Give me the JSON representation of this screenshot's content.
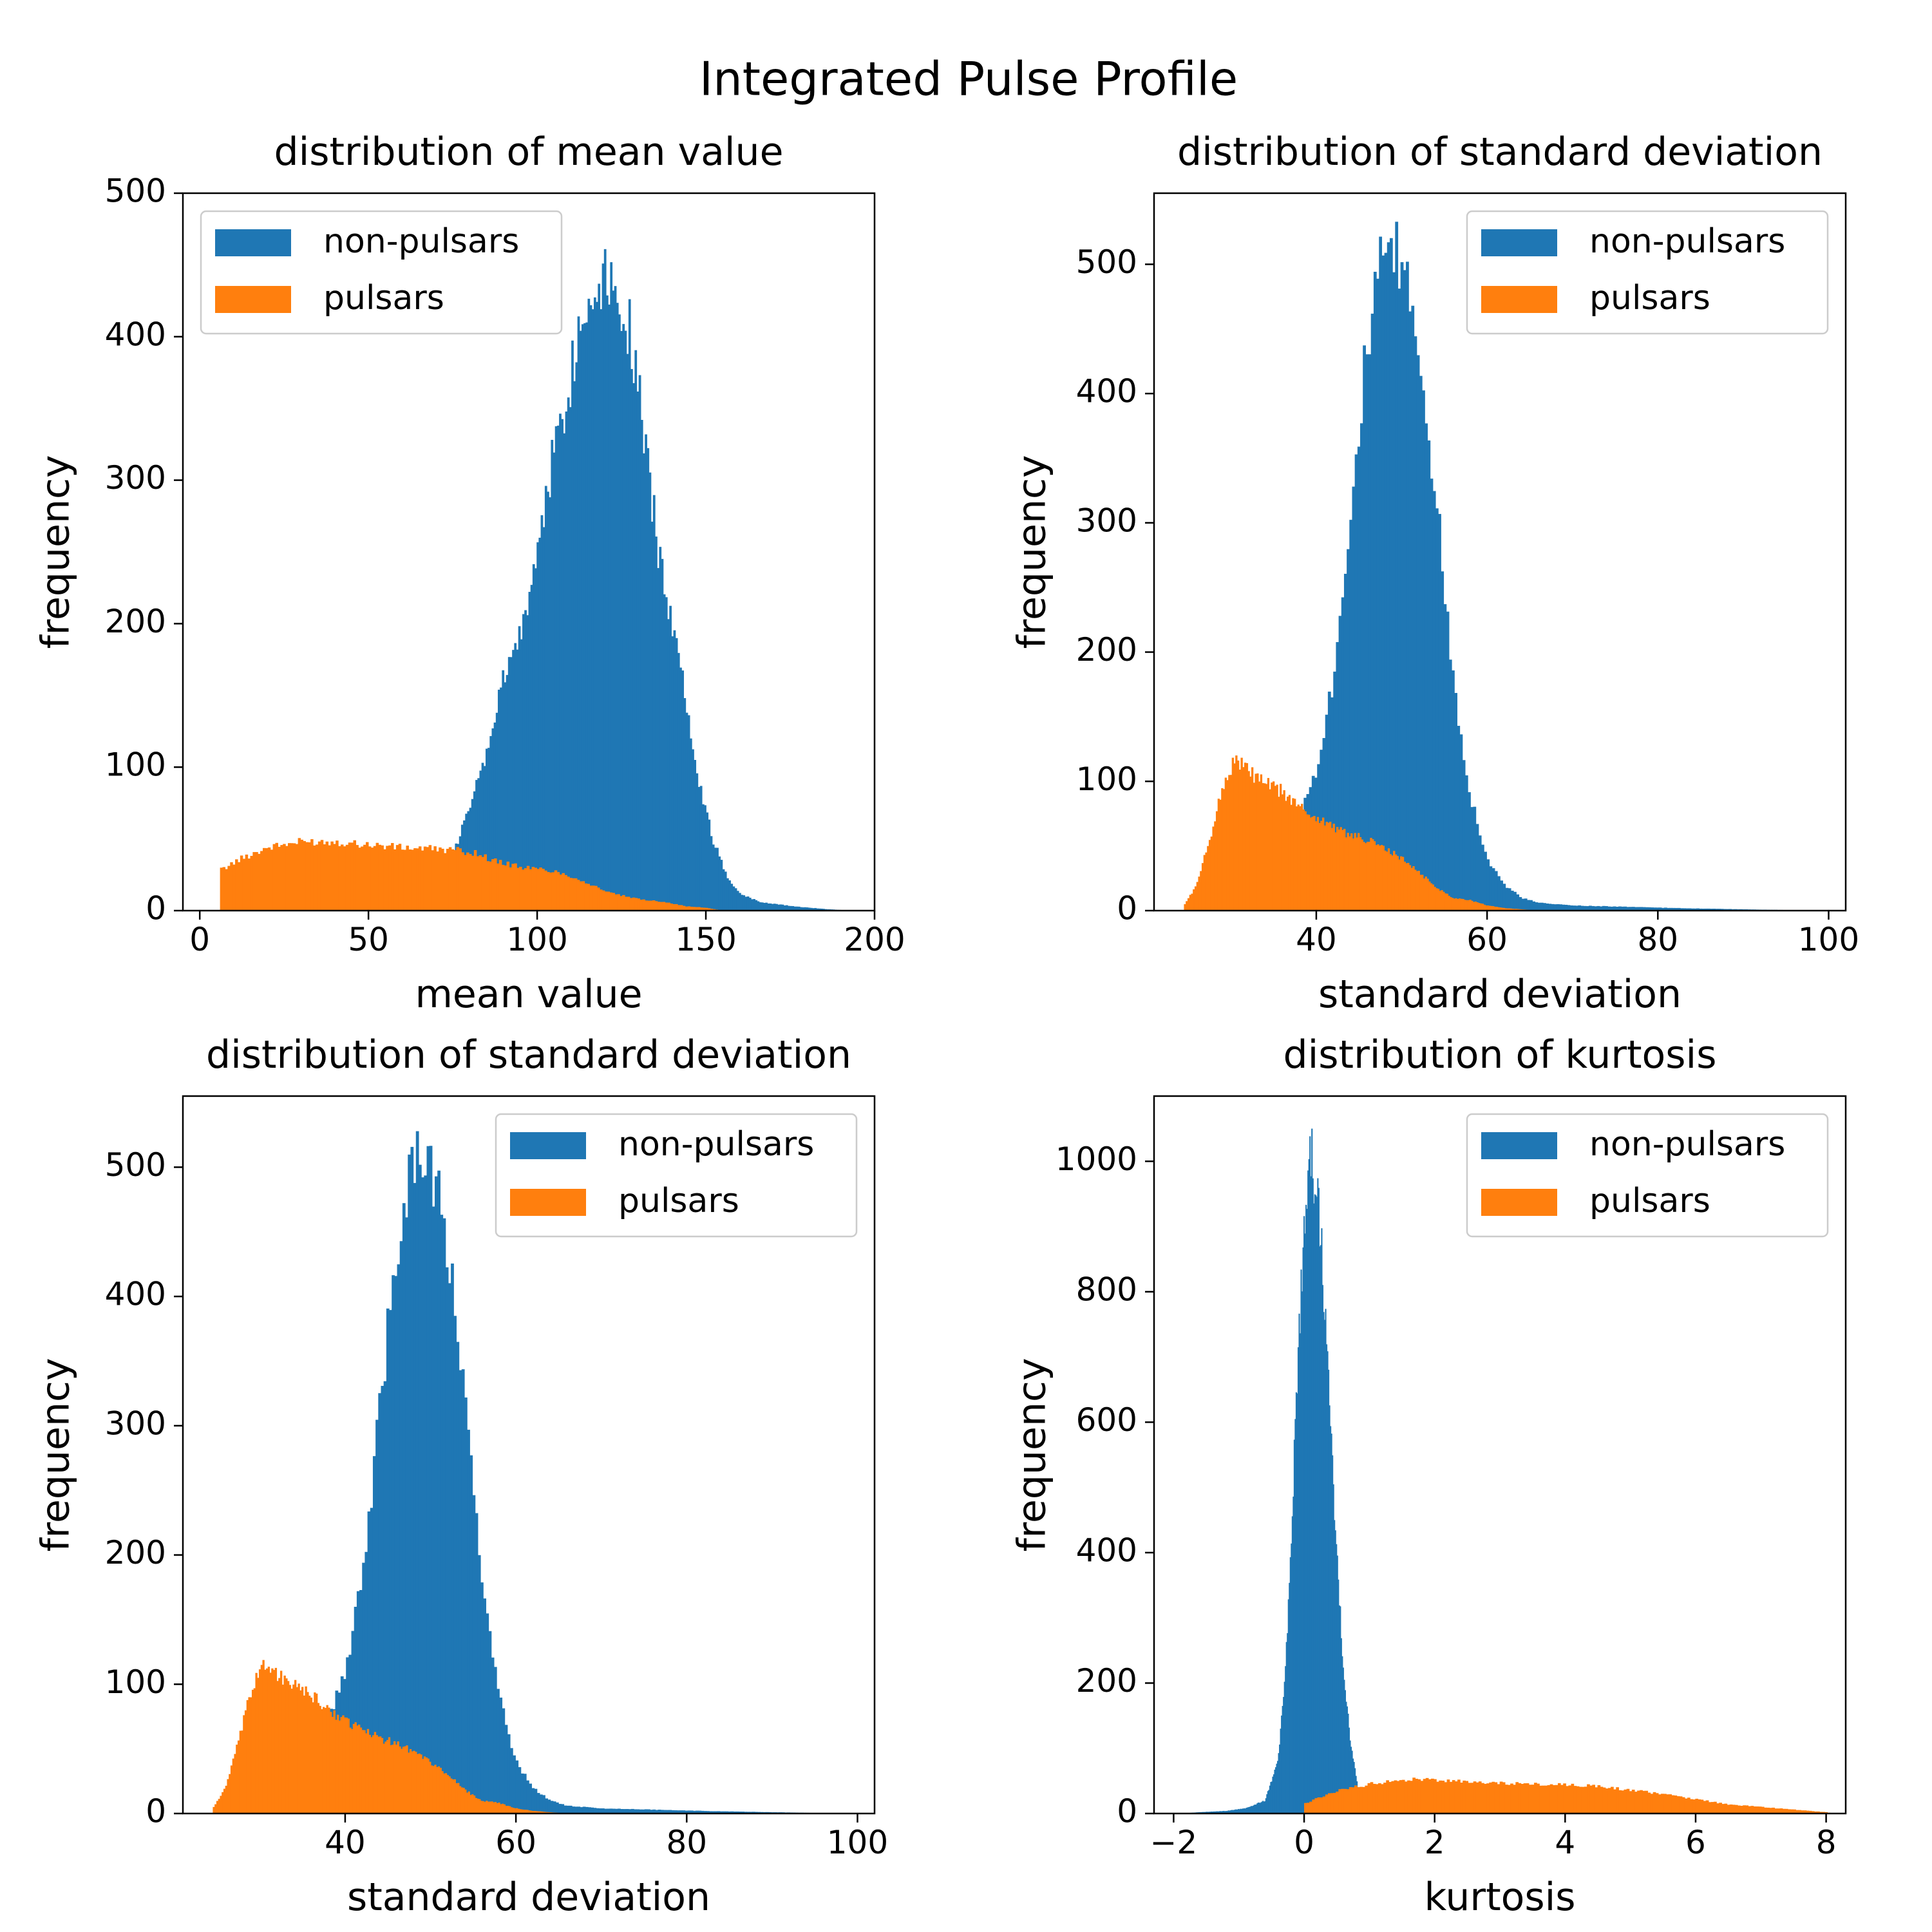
{
  "figure_title": "Integrated Pulse Profile",
  "colors": {
    "non_pulsars": "#1f77b4",
    "pulsars": "#ff7f0e"
  },
  "chart_data": [
    {
      "type": "bar",
      "title": "distribution of mean value",
      "xlabel": "mean value",
      "ylabel": "frequency",
      "xlim": [
        -5,
        200
      ],
      "ylim": [
        0,
        500
      ],
      "xticks": [
        0,
        50,
        100,
        150,
        200
      ],
      "yticks": [
        0,
        100,
        200,
        300,
        400,
        500
      ],
      "legend": {
        "position": "upper-left"
      },
      "series": [
        {
          "name": "non-pulsars",
          "color": "#1f77b4",
          "peaks": [
            [
              72,
              0
            ],
            [
              76,
              45
            ],
            [
              84,
              100
            ],
            [
              90,
              160
            ],
            [
              96,
              200
            ],
            [
              100,
              250
            ],
            [
              104,
              310
            ],
            [
              108,
              350
            ],
            [
              112,
              400
            ],
            [
              116,
              430
            ],
            [
              120,
              450
            ],
            [
              124,
              430
            ],
            [
              128,
              400
            ],
            [
              132,
              320
            ],
            [
              136,
              250
            ],
            [
              140,
              200
            ],
            [
              144,
              150
            ],
            [
              148,
              90
            ],
            [
              152,
              50
            ],
            [
              156,
              25
            ],
            [
              160,
              12
            ],
            [
              166,
              6
            ],
            [
              176,
              3
            ],
            [
              186,
              1
            ],
            [
              193,
              0
            ]
          ]
        },
        {
          "name": "pulsars",
          "color": "#ff7f0e",
          "peaks": [
            [
              6,
              28
            ],
            [
              12,
              36
            ],
            [
              20,
              44
            ],
            [
              30,
              48
            ],
            [
              40,
              48
            ],
            [
              50,
              46
            ],
            [
              60,
              44
            ],
            [
              70,
              43
            ],
            [
              76,
              42
            ],
            [
              82,
              40
            ],
            [
              88,
              34
            ],
            [
              96,
              30
            ],
            [
              104,
              28
            ],
            [
              110,
              24
            ],
            [
              116,
              18
            ],
            [
              122,
              12
            ],
            [
              130,
              8
            ],
            [
              138,
              6
            ],
            [
              144,
              3
            ],
            [
              150,
              2
            ],
            [
              155,
              0
            ]
          ]
        }
      ]
    },
    {
      "type": "bar",
      "title": "distribution of standard deviation",
      "xlabel": "standard deviation",
      "ylabel": "frequency",
      "xlim": [
        21,
        102
      ],
      "ylim": [
        0,
        555
      ],
      "xticks": [
        40,
        60,
        80,
        100
      ],
      "yticks": [
        0,
        100,
        200,
        300,
        400,
        500
      ],
      "legend": {
        "position": "upper-right"
      },
      "series": [
        {
          "name": "non-pulsars",
          "color": "#1f77b4",
          "peaks": [
            [
              36,
              0
            ],
            [
              38,
              70
            ],
            [
              40,
              110
            ],
            [
              42,
              180
            ],
            [
              44,
              310
            ],
            [
              46,
              440
            ],
            [
              48,
              510
            ],
            [
              50,
              500
            ],
            [
              52,
              440
            ],
            [
              54,
              320
            ],
            [
              56,
              180
            ],
            [
              58,
              90
            ],
            [
              60,
              40
            ],
            [
              62,
              20
            ],
            [
              64,
              10
            ],
            [
              66,
              6
            ],
            [
              70,
              4
            ],
            [
              76,
              3
            ],
            [
              82,
              2
            ],
            [
              90,
              1
            ],
            [
              99,
              0
            ]
          ]
        },
        {
          "name": "pulsars",
          "color": "#ff7f0e",
          "peaks": [
            [
              24.5,
              4
            ],
            [
              26,
              20
            ],
            [
              27.5,
              55
            ],
            [
              29,
              95
            ],
            [
              30.5,
              118
            ],
            [
              32,
              108
            ],
            [
              34,
              98
            ],
            [
              36,
              92
            ],
            [
              38,
              80
            ],
            [
              40,
              72
            ],
            [
              42,
              65
            ],
            [
              44,
              58
            ],
            [
              46,
              55
            ],
            [
              48,
              48
            ],
            [
              50,
              40
            ],
            [
              52,
              30
            ],
            [
              54,
              18
            ],
            [
              56,
              10
            ],
            [
              58,
              8
            ],
            [
              60,
              4
            ],
            [
              62,
              2
            ],
            [
              64,
              1
            ],
            [
              66,
              0
            ]
          ]
        }
      ]
    },
    {
      "type": "bar",
      "title": "distribution of standard deviation",
      "xlabel": "standard deviation",
      "ylabel": "frequency",
      "xlim": [
        21,
        102
      ],
      "ylim": [
        0,
        555
      ],
      "xticks": [
        40,
        60,
        80,
        100
      ],
      "yticks": [
        0,
        100,
        200,
        300,
        400,
        500
      ],
      "legend": {
        "position": "upper-right"
      },
      "series": [
        {
          "name": "non-pulsars",
          "color": "#1f77b4",
          "peaks": [
            [
              36,
              0
            ],
            [
              38,
              70
            ],
            [
              40,
              110
            ],
            [
              42,
              180
            ],
            [
              44,
              310
            ],
            [
              46,
              440
            ],
            [
              48,
              510
            ],
            [
              50,
              500
            ],
            [
              52,
              440
            ],
            [
              54,
              320
            ],
            [
              56,
              180
            ],
            [
              58,
              90
            ],
            [
              60,
              40
            ],
            [
              62,
              20
            ],
            [
              64,
              10
            ],
            [
              66,
              6
            ],
            [
              70,
              4
            ],
            [
              76,
              3
            ],
            [
              82,
              2
            ],
            [
              90,
              1
            ],
            [
              99,
              0
            ]
          ]
        },
        {
          "name": "pulsars",
          "color": "#ff7f0e",
          "peaks": [
            [
              24.5,
              4
            ],
            [
              26,
              20
            ],
            [
              27.5,
              55
            ],
            [
              29,
              95
            ],
            [
              30.5,
              118
            ],
            [
              32,
              108
            ],
            [
              34,
              98
            ],
            [
              36,
              92
            ],
            [
              38,
              80
            ],
            [
              40,
              72
            ],
            [
              42,
              65
            ],
            [
              44,
              58
            ],
            [
              46,
              55
            ],
            [
              48,
              48
            ],
            [
              50,
              40
            ],
            [
              52,
              30
            ],
            [
              54,
              18
            ],
            [
              56,
              10
            ],
            [
              58,
              8
            ],
            [
              60,
              4
            ],
            [
              62,
              2
            ],
            [
              64,
              1
            ],
            [
              66,
              0
            ]
          ]
        }
      ]
    },
    {
      "type": "bar",
      "title": "distribution of kurtosis",
      "xlabel": "kurtosis",
      "ylabel": "frequency",
      "xlim": [
        -2.3,
        8.3
      ],
      "ylim": [
        0,
        1100
      ],
      "xticks": [
        -2,
        0,
        2,
        4,
        6,
        8
      ],
      "xtick_labels": [
        "−2",
        "0",
        "2",
        "4",
        "6",
        "8"
      ],
      "yticks": [
        0,
        200,
        400,
        600,
        800,
        1000
      ],
      "legend": {
        "position": "upper-right"
      },
      "series": [
        {
          "name": "non-pulsars",
          "color": "#1f77b4",
          "peaks": [
            [
              -1.9,
              0
            ],
            [
              -1.6,
              2
            ],
            [
              -1.2,
              4
            ],
            [
              -0.9,
              8
            ],
            [
              -0.6,
              20
            ],
            [
              -0.4,
              80
            ],
            [
              -0.3,
              200
            ],
            [
              -0.2,
              400
            ],
            [
              -0.1,
              700
            ],
            [
              0.0,
              920
            ],
            [
              0.1,
              1000
            ],
            [
              0.2,
              960
            ],
            [
              0.3,
              800
            ],
            [
              0.4,
              600
            ],
            [
              0.5,
              400
            ],
            [
              0.6,
              220
            ],
            [
              0.7,
              120
            ],
            [
              0.8,
              50
            ],
            [
              0.9,
              15
            ],
            [
              1.0,
              5
            ],
            [
              1.1,
              0
            ]
          ]
        },
        {
          "name": "pulsars",
          "color": "#ff7f0e",
          "peaks": [
            [
              0.0,
              15
            ],
            [
              0.5,
              35
            ],
            [
              1.0,
              45
            ],
            [
              1.5,
              52
            ],
            [
              2.0,
              52
            ],
            [
              2.5,
              48
            ],
            [
              3.0,
              47
            ],
            [
              3.5,
              45
            ],
            [
              4.0,
              44
            ],
            [
              4.5,
              42
            ],
            [
              5.0,
              36
            ],
            [
              5.5,
              30
            ],
            [
              6.0,
              22
            ],
            [
              6.5,
              14
            ],
            [
              7.0,
              10
            ],
            [
              7.5,
              6
            ],
            [
              8.0,
              2
            ],
            [
              8.1,
              0
            ]
          ]
        }
      ]
    }
  ]
}
